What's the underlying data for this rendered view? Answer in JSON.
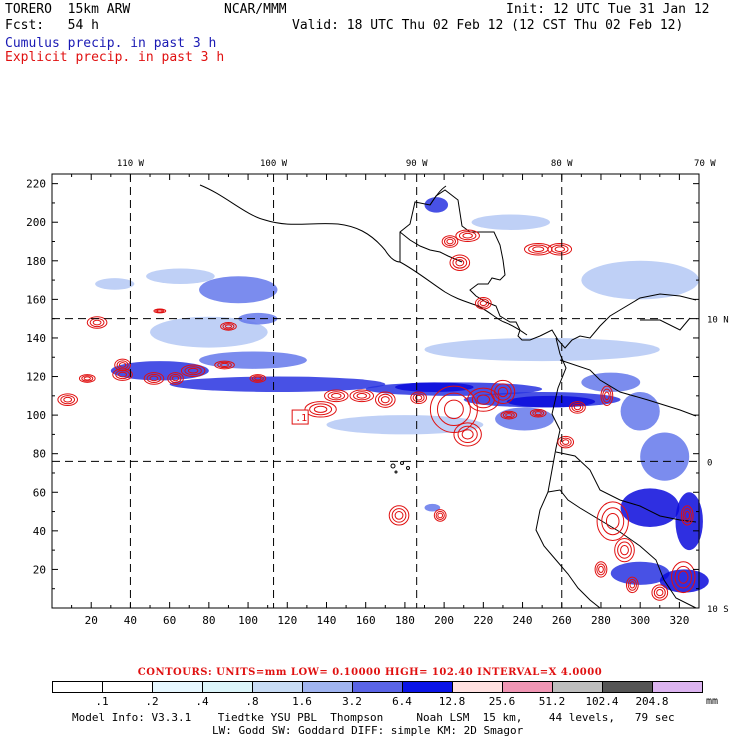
{
  "header": {
    "model_title": "TORERO  15km ARW",
    "org": "NCAR/MMM",
    "init": "Init: 12 UTC Tue 31 Jan 12",
    "fcst": "Fcst:   54 h",
    "valid": "Valid: 18 UTC Thu 02 Feb 12 (12 CST Thu 02 Feb 12)",
    "cumulus_label": "Cumulus precip. in past 3 h",
    "explicit_label": "Explicit precip. in past 3 h"
  },
  "colors": {
    "cumulus": "#1a1ab4",
    "explicit": "#e01010",
    "coast": "#000000",
    "grid": "#000000"
  },
  "chart_data": {
    "type": "map",
    "title": "Cumulus and explicit precipitation in past 3 h",
    "x_axis": {
      "min": 0,
      "max": 330,
      "ticks": [
        20,
        40,
        60,
        80,
        100,
        120,
        140,
        160,
        180,
        200,
        220,
        240,
        260,
        280,
        300,
        320
      ]
    },
    "y_axis": {
      "min": 0,
      "max": 225,
      "ticks": [
        20,
        40,
        60,
        80,
        100,
        120,
        140,
        160,
        180,
        200,
        220
      ]
    },
    "lon_labels": [
      {
        "label": "110 W",
        "x": 40
      },
      {
        "label": "100 W",
        "x": 113
      },
      {
        "label": "90 W",
        "x": 186
      },
      {
        "label": "80 W",
        "x": 260
      },
      {
        "label": "70 W",
        "x": 333
      }
    ],
    "lat_labels": [
      {
        "label": "10 N",
        "y": 150
      },
      {
        "label": "0",
        "y": 76
      },
      {
        "label": "10 S",
        "y": 0
      }
    ],
    "gridlines": {
      "lon_x": [
        40,
        113,
        186,
        260
      ],
      "lat_y": [
        150,
        76
      ]
    },
    "low_marker": {
      "label": ".1",
      "x": 123,
      "y": 99
    },
    "cumulus_areas": [
      {
        "x": 60,
        "y": 112,
        "w": 110,
        "h": 8,
        "level": 3
      },
      {
        "x": 30,
        "y": 118,
        "w": 50,
        "h": 10,
        "level": 3
      },
      {
        "x": 75,
        "y": 124,
        "w": 55,
        "h": 9,
        "level": 2
      },
      {
        "x": 50,
        "y": 135,
        "w": 60,
        "h": 16,
        "level": 1
      },
      {
        "x": 75,
        "y": 158,
        "w": 40,
        "h": 14,
        "level": 2
      },
      {
        "x": 48,
        "y": 168,
        "w": 35,
        "h": 8,
        "level": 1
      },
      {
        "x": 22,
        "y": 165,
        "w": 20,
        "h": 6,
        "level": 1
      },
      {
        "x": 95,
        "y": 147,
        "w": 20,
        "h": 6,
        "level": 2
      },
      {
        "x": 160,
        "y": 110,
        "w": 90,
        "h": 7,
        "level": 3
      },
      {
        "x": 210,
        "y": 104,
        "w": 80,
        "h": 8,
        "level": 3
      },
      {
        "x": 175,
        "y": 112,
        "w": 40,
        "h": 5,
        "level": 4
      },
      {
        "x": 232,
        "y": 104,
        "w": 45,
        "h": 6,
        "level": 4
      },
      {
        "x": 226,
        "y": 92,
        "w": 30,
        "h": 12,
        "level": 2
      },
      {
        "x": 270,
        "y": 112,
        "w": 30,
        "h": 10,
        "level": 2
      },
      {
        "x": 190,
        "y": 128,
        "w": 120,
        "h": 12,
        "level": 1
      },
      {
        "x": 140,
        "y": 90,
        "w": 80,
        "h": 10,
        "level": 1
      },
      {
        "x": 290,
        "y": 42,
        "w": 30,
        "h": 20,
        "level": 4
      },
      {
        "x": 318,
        "y": 30,
        "w": 14,
        "h": 30,
        "level": 4
      },
      {
        "x": 285,
        "y": 12,
        "w": 30,
        "h": 12,
        "level": 3
      },
      {
        "x": 310,
        "y": 8,
        "w": 25,
        "h": 12,
        "level": 4
      },
      {
        "x": 300,
        "y": 66,
        "w": 25,
        "h": 25,
        "level": 2
      },
      {
        "x": 290,
        "y": 92,
        "w": 20,
        "h": 20,
        "level": 2
      },
      {
        "x": 214,
        "y": 196,
        "w": 40,
        "h": 8,
        "level": 1
      },
      {
        "x": 190,
        "y": 205,
        "w": 12,
        "h": 8,
        "level": 3
      },
      {
        "x": 190,
        "y": 50,
        "w": 8,
        "h": 4,
        "level": 2
      },
      {
        "x": 270,
        "y": 160,
        "w": 60,
        "h": 20,
        "level": 1
      }
    ],
    "explicit_cells": [
      {
        "x": 8,
        "y": 108,
        "rx": 5,
        "ry": 3
      },
      {
        "x": 18,
        "y": 119,
        "rx": 4,
        "ry": 2
      },
      {
        "x": 23,
        "y": 148,
        "rx": 5,
        "ry": 3
      },
      {
        "x": 36,
        "y": 126,
        "rx": 4,
        "ry": 3
      },
      {
        "x": 36,
        "y": 121,
        "rx": 5,
        "ry": 3
      },
      {
        "x": 52,
        "y": 119,
        "rx": 5,
        "ry": 3
      },
      {
        "x": 63,
        "y": 119,
        "rx": 4,
        "ry": 3
      },
      {
        "x": 55,
        "y": 154,
        "rx": 3,
        "ry": 1
      },
      {
        "x": 72,
        "y": 123,
        "rx": 6,
        "ry": 3
      },
      {
        "x": 90,
        "y": 146,
        "rx": 4,
        "ry": 2
      },
      {
        "x": 88,
        "y": 126,
        "rx": 5,
        "ry": 2
      },
      {
        "x": 105,
        "y": 119,
        "rx": 4,
        "ry": 2
      },
      {
        "x": 137,
        "y": 103,
        "rx": 8,
        "ry": 4
      },
      {
        "x": 145,
        "y": 110,
        "rx": 6,
        "ry": 3
      },
      {
        "x": 158,
        "y": 110,
        "rx": 6,
        "ry": 3
      },
      {
        "x": 170,
        "y": 108,
        "rx": 5,
        "ry": 4
      },
      {
        "x": 187,
        "y": 109,
        "rx": 4,
        "ry": 3
      },
      {
        "x": 205,
        "y": 103,
        "rx": 12,
        "ry": 12
      },
      {
        "x": 220,
        "y": 108,
        "rx": 8,
        "ry": 6
      },
      {
        "x": 212,
        "y": 90,
        "rx": 7,
        "ry": 6
      },
      {
        "x": 230,
        "y": 112,
        "rx": 6,
        "ry": 6
      },
      {
        "x": 233,
        "y": 100,
        "rx": 4,
        "ry": 2
      },
      {
        "x": 248,
        "y": 101,
        "rx": 4,
        "ry": 2
      },
      {
        "x": 262,
        "y": 86,
        "rx": 4,
        "ry": 3
      },
      {
        "x": 268,
        "y": 104,
        "rx": 4,
        "ry": 3
      },
      {
        "x": 212,
        "y": 193,
        "rx": 6,
        "ry": 3
      },
      {
        "x": 203,
        "y": 190,
        "rx": 4,
        "ry": 3
      },
      {
        "x": 208,
        "y": 179,
        "rx": 5,
        "ry": 4
      },
      {
        "x": 220,
        "y": 158,
        "rx": 4,
        "ry": 3
      },
      {
        "x": 248,
        "y": 186,
        "rx": 7,
        "ry": 3
      },
      {
        "x": 259,
        "y": 186,
        "rx": 6,
        "ry": 3
      },
      {
        "x": 177,
        "y": 48,
        "rx": 5,
        "ry": 5
      },
      {
        "x": 198,
        "y": 48,
        "rx": 3,
        "ry": 3
      },
      {
        "x": 283,
        "y": 110,
        "rx": 3,
        "ry": 5
      },
      {
        "x": 286,
        "y": 45,
        "rx": 8,
        "ry": 10
      },
      {
        "x": 292,
        "y": 30,
        "rx": 5,
        "ry": 6
      },
      {
        "x": 280,
        "y": 20,
        "rx": 3,
        "ry": 4
      },
      {
        "x": 296,
        "y": 12,
        "rx": 3,
        "ry": 4
      },
      {
        "x": 322,
        "y": 16,
        "rx": 6,
        "ry": 8
      },
      {
        "x": 310,
        "y": 8,
        "rx": 4,
        "ry": 4
      },
      {
        "x": 324,
        "y": 48,
        "rx": 3,
        "ry": 5
      }
    ]
  },
  "contours_line": "CONTOURS:  UNITS=mm  LOW= 0.10000      HIGH=  102.40      INTERVAL=X  4.0000",
  "colorbar": {
    "labels": [
      ".1",
      ".2",
      ".4",
      ".8",
      "1.6",
      "3.2",
      "6.4",
      "12.8",
      "25.6",
      "51.2",
      "102.4",
      "204.8"
    ],
    "colors": [
      "#ffffff",
      "#ffffff",
      "#e6f7ff",
      "#dcf5fa",
      "#c8dcf5",
      "#a0b4f0",
      "#5a64e6",
      "#0a14e6",
      "#ffe1e1",
      "#f096b4",
      "#bebebe",
      "#555555",
      "#dcb4f0"
    ],
    "unit": "mm"
  },
  "footer": {
    "line1": "Model Info: V3.3.1    Tiedtke YSU PBL  Thompson     Noah LSM  15 km,    44 levels,   79 sec",
    "line2": "LW: Godd SW: Goddard DIFF: simple KM: 2D Smagor"
  }
}
